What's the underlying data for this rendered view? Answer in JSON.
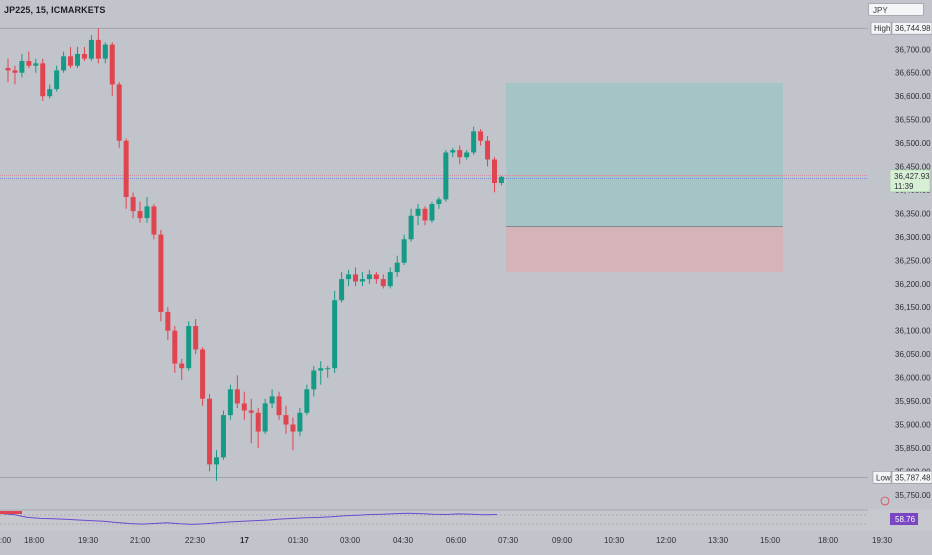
{
  "header": {
    "symbol": "JP225, 15, ICMARKETS",
    "currency": "JPY"
  },
  "price_axis": {
    "ticks": [
      "36,700.00",
      "36,650.00",
      "36,600.00",
      "36,550.00",
      "36,500.00",
      "36,450.00",
      "36,400.00",
      "36,350.00",
      "36,300.00",
      "36,250.00",
      "36,200.00",
      "36,150.00",
      "36,100.00",
      "36,050.00",
      "36,000.00",
      "35,950.00",
      "35,900.00",
      "35,850.00",
      "35,800.00",
      "35,750.00"
    ],
    "high_label": "High",
    "high_value": "36,744.98",
    "low_label": "Low",
    "low_value": "35,787.48",
    "last_price": "36,427.93",
    "countdown": "11:39",
    "indicator_value": "58.76"
  },
  "time_axis": {
    "labels": [
      ":00",
      "18:00",
      "19:30",
      "21:00",
      "22:30",
      "17",
      "01:30",
      "03:00",
      "04:30",
      "06:00",
      "07:30",
      "09:00",
      "10:30",
      "12:00",
      "13:30",
      "15:00",
      "18:00",
      "19:30"
    ]
  },
  "colors": {
    "up": "#159a85",
    "down": "#e0444f",
    "background": "#c2c4cb",
    "profit_zone": "#9fc4c6",
    "loss_zone": "#d7b0b6",
    "indicator_line": "#6a4ccf",
    "last_price_badge": "#d7efd5",
    "indicator_badge": "#7b46c2"
  },
  "chart_data": {
    "type": "candlestick",
    "price_range": [
      35722,
      36788
    ],
    "candles": [
      {
        "o": 36660,
        "h": 36680,
        "l": 36630,
        "c": 36655
      },
      {
        "o": 36655,
        "h": 36665,
        "l": 36625,
        "c": 36650
      },
      {
        "o": 36650,
        "h": 36690,
        "l": 36640,
        "c": 36675
      },
      {
        "o": 36675,
        "h": 36695,
        "l": 36660,
        "c": 36665
      },
      {
        "o": 36665,
        "h": 36680,
        "l": 36650,
        "c": 36670
      },
      {
        "o": 36670,
        "h": 36680,
        "l": 36590,
        "c": 36600
      },
      {
        "o": 36600,
        "h": 36625,
        "l": 36595,
        "c": 36615
      },
      {
        "o": 36615,
        "h": 36665,
        "l": 36610,
        "c": 36655
      },
      {
        "o": 36655,
        "h": 36695,
        "l": 36650,
        "c": 36685
      },
      {
        "o": 36685,
        "h": 36705,
        "l": 36660,
        "c": 36665
      },
      {
        "o": 36665,
        "h": 36705,
        "l": 36660,
        "c": 36690
      },
      {
        "o": 36690,
        "h": 36705,
        "l": 36675,
        "c": 36680
      },
      {
        "o": 36680,
        "h": 36730,
        "l": 36675,
        "c": 36720
      },
      {
        "o": 36720,
        "h": 36745,
        "l": 36670,
        "c": 36680
      },
      {
        "o": 36680,
        "h": 36715,
        "l": 36670,
        "c": 36710
      },
      {
        "o": 36710,
        "h": 36715,
        "l": 36600,
        "c": 36625
      },
      {
        "o": 36625,
        "h": 36630,
        "l": 36490,
        "c": 36505
      },
      {
        "o": 36505,
        "h": 36510,
        "l": 36360,
        "c": 36385
      },
      {
        "o": 36385,
        "h": 36395,
        "l": 36340,
        "c": 36355
      },
      {
        "o": 36355,
        "h": 36375,
        "l": 36330,
        "c": 36340
      },
      {
        "o": 36340,
        "h": 36385,
        "l": 36330,
        "c": 36365
      },
      {
        "o": 36365,
        "h": 36370,
        "l": 36295,
        "c": 36305
      },
      {
        "o": 36305,
        "h": 36315,
        "l": 36120,
        "c": 36140
      },
      {
        "o": 36140,
        "h": 36150,
        "l": 36080,
        "c": 36100
      },
      {
        "o": 36100,
        "h": 36110,
        "l": 36010,
        "c": 36030
      },
      {
        "o": 36030,
        "h": 36040,
        "l": 35995,
        "c": 36020
      },
      {
        "o": 36020,
        "h": 36120,
        "l": 36015,
        "c": 36110
      },
      {
        "o": 36110,
        "h": 36125,
        "l": 36050,
        "c": 36060
      },
      {
        "o": 36060,
        "h": 36065,
        "l": 35940,
        "c": 35955
      },
      {
        "o": 35955,
        "h": 35965,
        "l": 35800,
        "c": 35815
      },
      {
        "o": 35815,
        "h": 35845,
        "l": 35780,
        "c": 35830
      },
      {
        "o": 35830,
        "h": 35930,
        "l": 35825,
        "c": 35920
      },
      {
        "o": 35920,
        "h": 35985,
        "l": 35910,
        "c": 35975
      },
      {
        "o": 35975,
        "h": 36005,
        "l": 35935,
        "c": 35945
      },
      {
        "o": 35945,
        "h": 35970,
        "l": 35910,
        "c": 35930
      },
      {
        "o": 35930,
        "h": 35955,
        "l": 35860,
        "c": 35925
      },
      {
        "o": 35925,
        "h": 35935,
        "l": 35850,
        "c": 35885
      },
      {
        "o": 35885,
        "h": 35955,
        "l": 35880,
        "c": 35945
      },
      {
        "o": 35945,
        "h": 35975,
        "l": 35935,
        "c": 35960
      },
      {
        "o": 35960,
        "h": 35970,
        "l": 35910,
        "c": 35920
      },
      {
        "o": 35920,
        "h": 35940,
        "l": 35880,
        "c": 35900
      },
      {
        "o": 35900,
        "h": 35915,
        "l": 35845,
        "c": 35885
      },
      {
        "o": 35885,
        "h": 35935,
        "l": 35875,
        "c": 35925
      },
      {
        "o": 35925,
        "h": 35985,
        "l": 35920,
        "c": 35975
      },
      {
        "o": 35975,
        "h": 36025,
        "l": 35960,
        "c": 36015
      },
      {
        "o": 36015,
        "h": 36035,
        "l": 35985,
        "c": 36020
      },
      {
        "o": 36020,
        "h": 36025,
        "l": 36000,
        "c": 36020
      },
      {
        "o": 36020,
        "h": 36185,
        "l": 36010,
        "c": 36165
      },
      {
        "o": 36165,
        "h": 36225,
        "l": 36160,
        "c": 36210
      },
      {
        "o": 36210,
        "h": 36230,
        "l": 36195,
        "c": 36220
      },
      {
        "o": 36220,
        "h": 36235,
        "l": 36195,
        "c": 36205
      },
      {
        "o": 36205,
        "h": 36225,
        "l": 36195,
        "c": 36210
      },
      {
        "o": 36210,
        "h": 36230,
        "l": 36200,
        "c": 36220
      },
      {
        "o": 36220,
        "h": 36225,
        "l": 36200,
        "c": 36210
      },
      {
        "o": 36210,
        "h": 36220,
        "l": 36190,
        "c": 36195
      },
      {
        "o": 36195,
        "h": 36235,
        "l": 36190,
        "c": 36225
      },
      {
        "o": 36225,
        "h": 36260,
        "l": 36215,
        "c": 36245
      },
      {
        "o": 36245,
        "h": 36305,
        "l": 36240,
        "c": 36295
      },
      {
        "o": 36295,
        "h": 36360,
        "l": 36290,
        "c": 36345
      },
      {
        "o": 36345,
        "h": 36370,
        "l": 36325,
        "c": 36360
      },
      {
        "o": 36360,
        "h": 36365,
        "l": 36325,
        "c": 36335
      },
      {
        "o": 36335,
        "h": 36375,
        "l": 36330,
        "c": 36370
      },
      {
        "o": 36370,
        "h": 36385,
        "l": 36360,
        "c": 36380
      },
      {
        "o": 36380,
        "h": 36485,
        "l": 36375,
        "c": 36480
      },
      {
        "o": 36480,
        "h": 36490,
        "l": 36470,
        "c": 36485
      },
      {
        "o": 36485,
        "h": 36495,
        "l": 36455,
        "c": 36470
      },
      {
        "o": 36470,
        "h": 36485,
        "l": 36465,
        "c": 36480
      },
      {
        "o": 36480,
        "h": 36535,
        "l": 36475,
        "c": 36525
      },
      {
        "o": 36525,
        "h": 36530,
        "l": 36495,
        "c": 36505
      },
      {
        "o": 36505,
        "h": 36515,
        "l": 36450,
        "c": 36465
      },
      {
        "o": 36465,
        "h": 36470,
        "l": 36395,
        "c": 36415
      },
      {
        "o": 36415,
        "h": 36430,
        "l": 36410,
        "c": 36428
      }
    ],
    "position": {
      "entry": 36322,
      "target": 36628,
      "stop": 36225
    },
    "high": 36744.98,
    "low": 35787.48,
    "last": 36427.93,
    "indicator": {
      "name": "RSI",
      "last": 58.76,
      "values": [
        62,
        58,
        50,
        47,
        46,
        44,
        42,
        40,
        38,
        34,
        31,
        29,
        31,
        33,
        30,
        28,
        30,
        33,
        36,
        38,
        40,
        42,
        45,
        47,
        49,
        50,
        52,
        55,
        57,
        59,
        60,
        62,
        63,
        62,
        60,
        59,
        61,
        60,
        58,
        59
      ]
    }
  }
}
